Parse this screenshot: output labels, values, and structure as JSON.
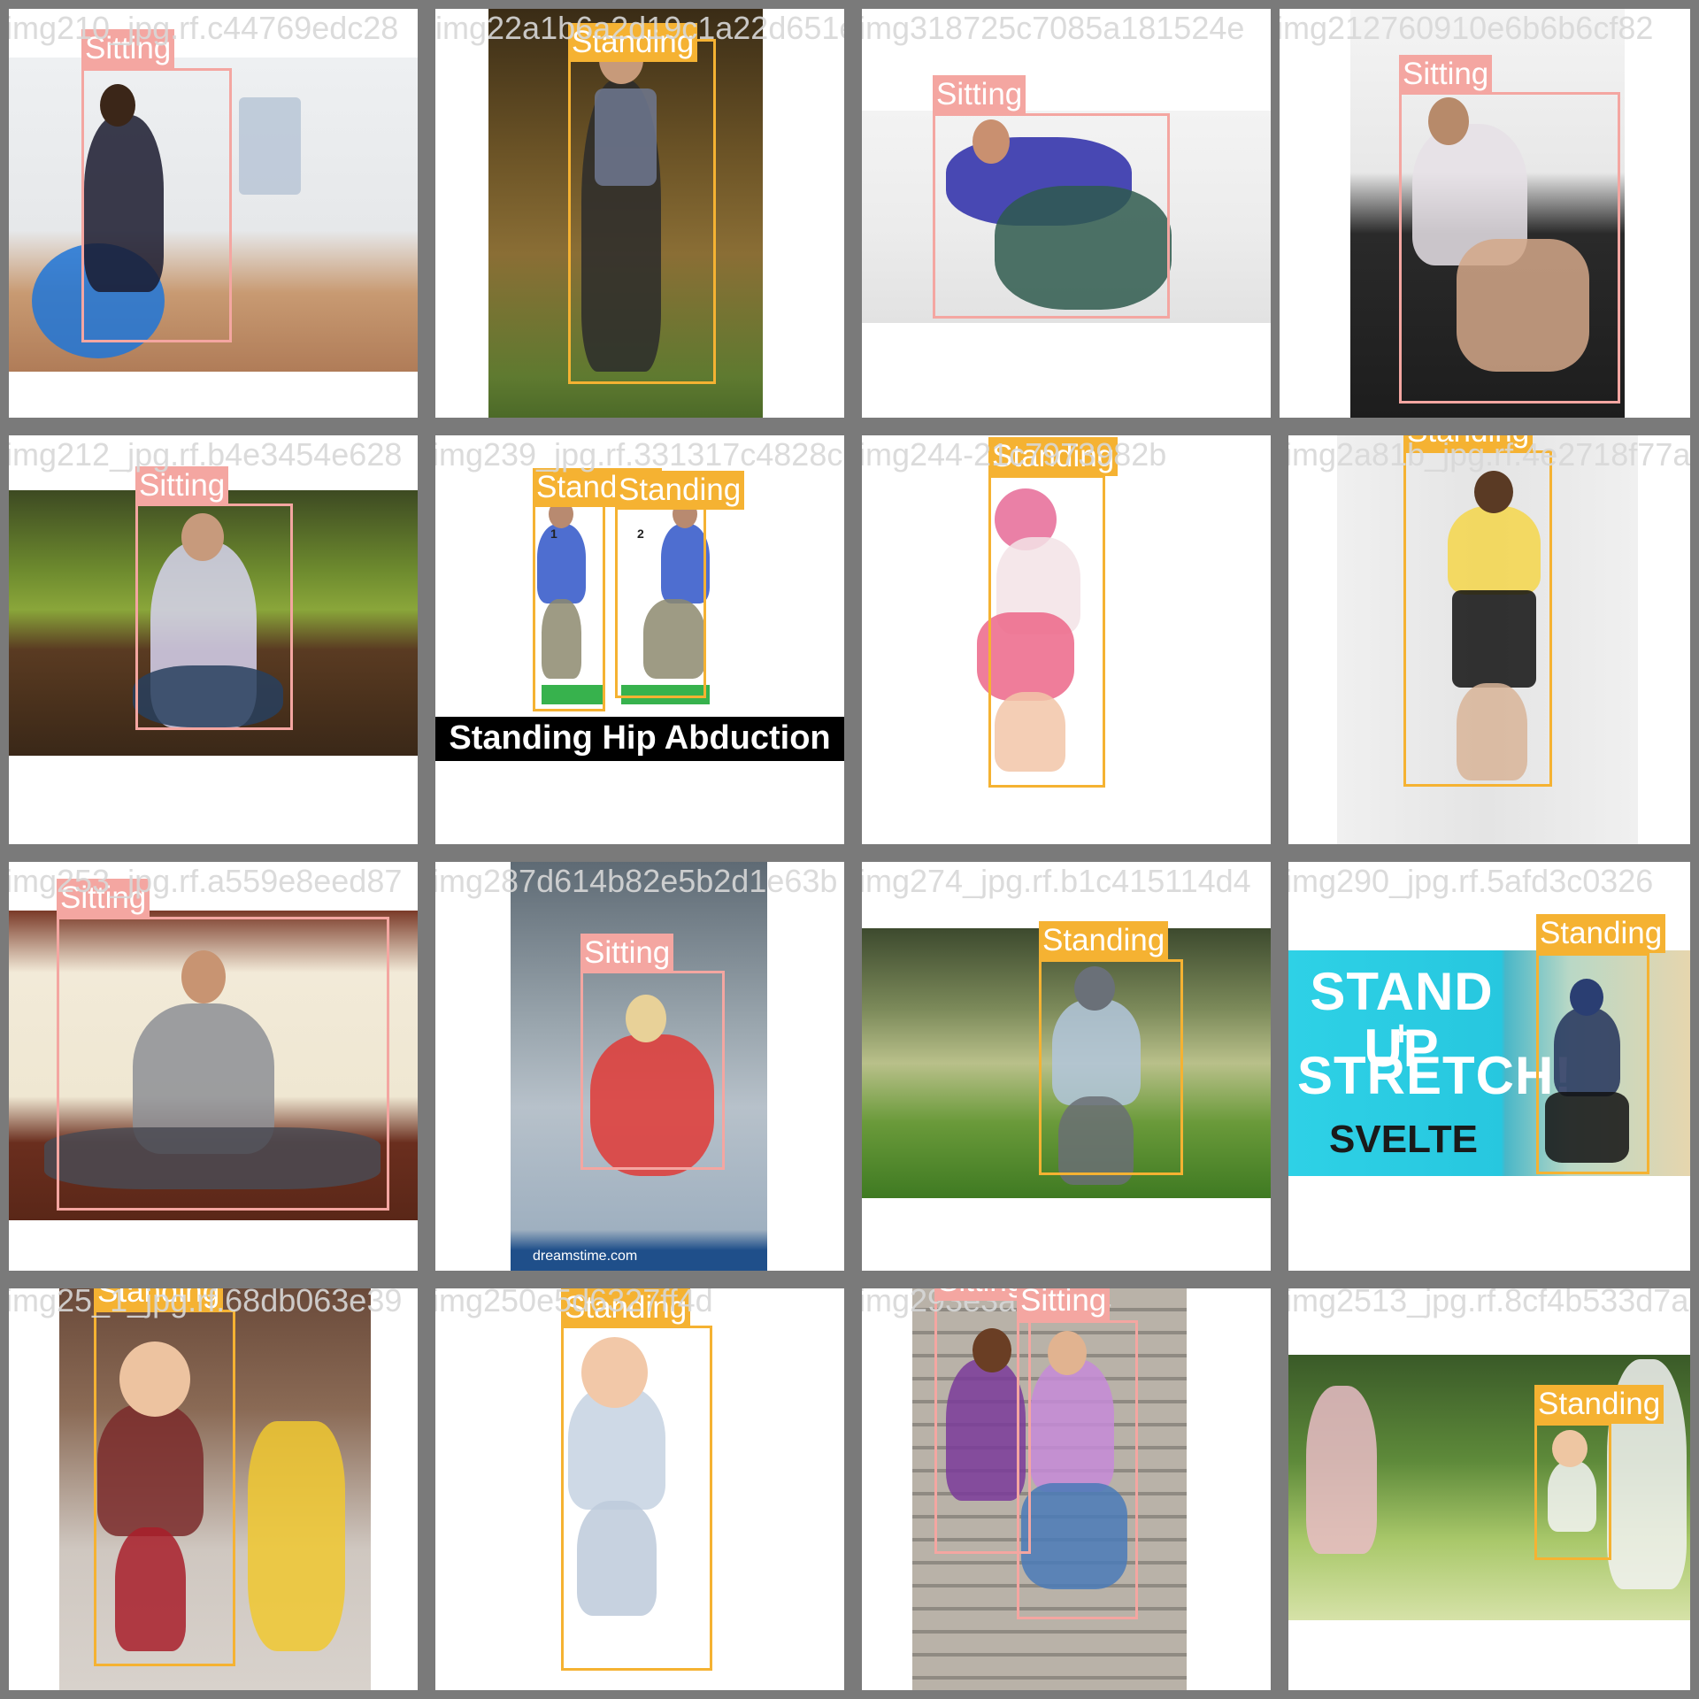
{
  "colors": {
    "sitting": "#f4a6a1",
    "standing": "#f5b232",
    "separator": "#7a7a7a"
  },
  "tiles": [
    {
      "filename": "img210_jpg.rf.c44769edc28",
      "labels": [
        "Sitting"
      ]
    },
    {
      "filename": "img22a1b6a2d19c1a22d651e059",
      "labels": [
        "Standing"
      ]
    },
    {
      "filename": "img318725c7085a181524e",
      "labels": [
        "Sitting"
      ]
    },
    {
      "filename": "img212760910e6b6b6cf82",
      "labels": [
        "Sitting"
      ]
    },
    {
      "filename": "img212_jpg.rf.b4e3454e628",
      "labels": [
        "Sitting"
      ]
    },
    {
      "filename": "img239_jpg.rf.331317c4828c94b",
      "labels": [
        "Standing",
        "Standing"
      ],
      "text": {
        "banner": "Standing Hip Abduction",
        "num1": "1",
        "num2": "2"
      }
    },
    {
      "filename": "img244-21c7973982b",
      "labels": [
        "Standing"
      ]
    },
    {
      "filename": "img2a81b_jpg.rf.4e2718f77a",
      "labels": [
        "Standing"
      ]
    },
    {
      "filename": "img253_jpg.rf.a559e8eed87",
      "labels": [
        "Sitting"
      ]
    },
    {
      "filename": "img287d614b82e5b2d1e63b",
      "labels": [
        "Sitting"
      ],
      "text": {
        "watermark": "dreamstime.com"
      }
    },
    {
      "filename": "img274_jpg.rf.b1c415114d4",
      "labels": [
        "Standing"
      ]
    },
    {
      "filename": "img290_jpg.rf.5afd3c0326",
      "labels": [
        "Standing"
      ],
      "text": {
        "line1": "STAND UP",
        "line2": "+",
        "line3": "STRETCH!",
        "brand": "SVELTE"
      }
    },
    {
      "filename": "img25_1_jpg.rf.68db063e39",
      "labels": [
        "Standing"
      ]
    },
    {
      "filename": "img250e5d6327ff4d",
      "labels": [
        "Standing"
      ]
    },
    {
      "filename": "img293e3acfd364",
      "labels": [
        "Sitting",
        "Sitting"
      ]
    },
    {
      "filename": "img2513_jpg.rf.8cf4b533d7a8",
      "labels": [
        "Standing"
      ]
    }
  ]
}
